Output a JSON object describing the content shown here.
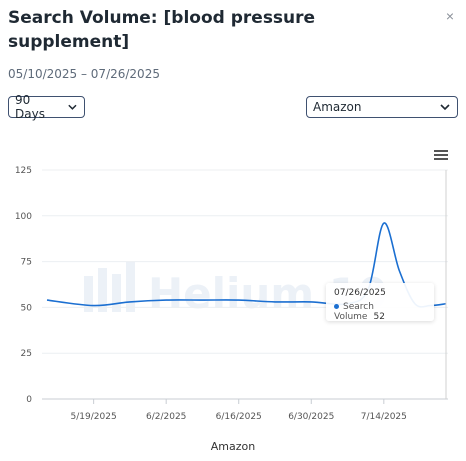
{
  "header": {
    "title": "Search Volume: [blood pressure supplement]",
    "close_label": "×",
    "date_range": "05/10/2025 – 07/26/2025"
  },
  "controls": {
    "days_select": "90 Days",
    "market_select": "Amazon"
  },
  "watermark": "Helium 10",
  "tooltip": {
    "date": "07/26/2025",
    "series": "Search Volume",
    "value": "52"
  },
  "chart_data": {
    "type": "line",
    "xlabel": "Amazon",
    "ylabel": "",
    "ylim": [
      0,
      125
    ],
    "yticks": [
      0,
      25,
      50,
      75,
      100,
      125
    ],
    "xtick_labels": [
      "5/19/2025",
      "6/2/2025",
      "6/16/2025",
      "6/30/2025",
      "7/14/2025"
    ],
    "grid": true,
    "series": [
      {
        "name": "Search Volume",
        "color": "#1b6fd1",
        "x": [
          "05/10/2025",
          "05/19/2025",
          "05/26/2025",
          "06/02/2025",
          "06/09/2025",
          "06/16/2025",
          "06/23/2025",
          "06/30/2025",
          "07/07/2025",
          "07/11/2025",
          "07/14/2025",
          "07/17/2025",
          "07/20/2025",
          "07/23/2025",
          "07/26/2025"
        ],
        "values": [
          54,
          51,
          53,
          54,
          54,
          54,
          53,
          53,
          52,
          60,
          96,
          70,
          52,
          51,
          52
        ]
      }
    ]
  }
}
